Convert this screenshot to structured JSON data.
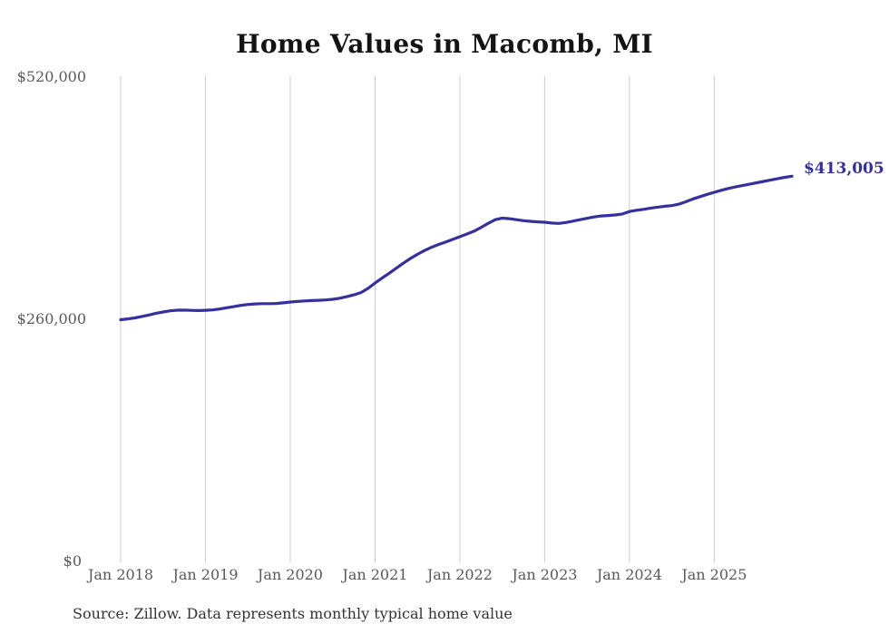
{
  "page": {
    "title": "Home Values in Macomb, MI",
    "source_note": "Source: Zillow. Data represents monthly typical home value"
  },
  "chart_data": {
    "type": "line",
    "title": "Home Values in Macomb, MI",
    "xlabel": "",
    "ylabel": "",
    "x_frequency": "monthly",
    "x_start": "Jan 2018",
    "x_end": "Dec 2025",
    "x_tick_labels": [
      "Jan 2018",
      "Jan 2019",
      "Jan 2020",
      "Jan 2021",
      "Jan 2022",
      "Jan 2023",
      "Jan 2024",
      "Jan 2025"
    ],
    "x_tick_month_indexes": [
      0,
      12,
      24,
      36,
      48,
      60,
      72,
      84
    ],
    "y_tick_labels": [
      "$0",
      "$260,000",
      "$520,000"
    ],
    "y_ticks": [
      0,
      260000,
      520000
    ],
    "ylim": [
      0,
      520000
    ],
    "grid": "vertical-only",
    "legend": "none",
    "gridline_color": "#cccccc",
    "axis_label_color": "#595959",
    "title_color": "#141414",
    "source_color": "#333333",
    "end_label": "$413,005",
    "end_value": 413005,
    "source": "Source: Zillow. Data represents monthly typical home value",
    "series": [
      {
        "name": "Monthly typical home value",
        "color": "#36309c",
        "values": [
          259500,
          260400,
          261500,
          263000,
          264600,
          266400,
          267800,
          269000,
          269700,
          269800,
          269500,
          269300,
          269600,
          270000,
          271000,
          272300,
          273500,
          274800,
          275800,
          276400,
          276700,
          276700,
          276900,
          277600,
          278400,
          279000,
          279600,
          280000,
          280300,
          280700,
          281300,
          282500,
          284200,
          286100,
          288500,
          293000,
          298700,
          304000,
          309200,
          314600,
          320000,
          325000,
          329500,
          333500,
          337000,
          340000,
          342600,
          345500,
          348300,
          351200,
          354200,
          358200,
          362500,
          366500,
          368200,
          367600,
          366500,
          365500,
          364800,
          364200,
          363800,
          362900,
          362500,
          363500,
          365000,
          366500,
          368000,
          369400,
          370500,
          371000,
          371600,
          372600,
          375300,
          376600,
          377600,
          378900,
          379900,
          380900,
          381600,
          383100,
          385700,
          388700,
          391200,
          393600,
          395800,
          398000,
          399900,
          401500,
          403000,
          404500,
          406000,
          407500,
          409000,
          410500,
          411800,
          413005
        ]
      }
    ]
  }
}
